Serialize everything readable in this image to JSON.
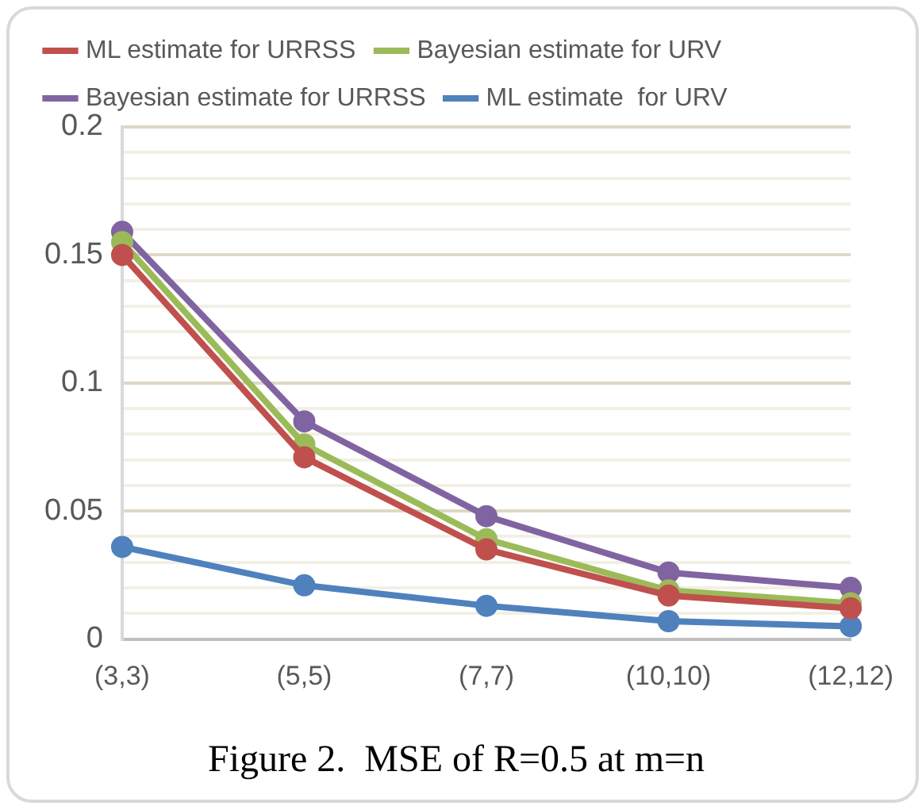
{
  "chart_data": {
    "type": "line",
    "title": "Figure 2.  MSE of R=0.5 at m=n",
    "categories": [
      "(3,3)",
      "(5,5)",
      "(7,7)",
      "(10,10)",
      "(12,12)"
    ],
    "series": [
      {
        "name": "Bayesian estimate for URRSS",
        "color": "#8064a2",
        "values": [
          0.159,
          0.085,
          0.048,
          0.026,
          0.02
        ]
      },
      {
        "name": "ML estimate for URRSS",
        "color": "#c0504d",
        "values": [
          0.15,
          0.071,
          0.035,
          0.017,
          0.012
        ]
      },
      {
        "name": "Bayesian estimate for URV",
        "color": "#9bbb59",
        "values": [
          0.155,
          0.076,
          0.039,
          0.019,
          0.014
        ]
      },
      {
        "name": "ML estimate  for URV",
        "color": "#4f81bd",
        "values": [
          0.036,
          0.021,
          0.013,
          0.007,
          0.005
        ]
      }
    ],
    "ylim": [
      0,
      0.2
    ],
    "yticks": [
      0,
      {
        "value": 0.01,
        "label": null
      },
      {
        "value": 0.02,
        "label": null
      },
      {
        "value": 0.03,
        "label": null
      },
      {
        "value": 0.04,
        "label": null
      },
      0.05,
      {
        "value": 0.06,
        "label": null
      },
      {
        "value": 0.07,
        "label": null
      },
      {
        "value": 0.08,
        "label": null
      },
      {
        "value": 0.09,
        "label": null
      },
      0.1,
      {
        "value": 0.11,
        "label": null
      },
      {
        "value": 0.12,
        "label": null
      },
      {
        "value": 0.13,
        "label": null
      },
      {
        "value": 0.14,
        "label": null
      },
      0.15,
      {
        "value": 0.16,
        "label": null
      },
      {
        "value": 0.17,
        "label": null
      },
      {
        "value": 0.18,
        "label": null
      },
      {
        "value": 0.19,
        "label": null
      },
      0.2
    ],
    "grid": "y",
    "legend": "top",
    "marker": "circle",
    "line_style": "solid"
  }
}
